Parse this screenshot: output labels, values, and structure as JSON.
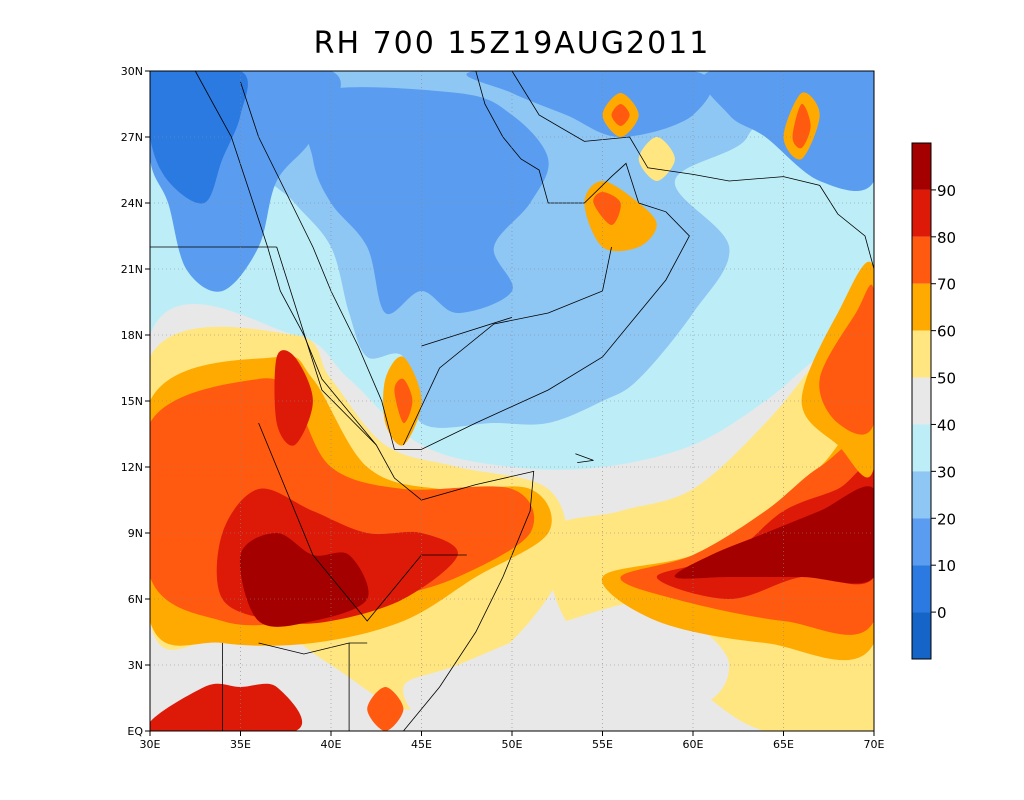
{
  "title": "RH 700 15Z19AUG2011",
  "map": {
    "lon_range": [
      30,
      70
    ],
    "lat_range": [
      0,
      30
    ],
    "x_ticks": [
      {
        "value": 30,
        "label": "30E"
      },
      {
        "value": 35,
        "label": "35E"
      },
      {
        "value": 40,
        "label": "40E"
      },
      {
        "value": 45,
        "label": "45E"
      },
      {
        "value": 50,
        "label": "50E"
      },
      {
        "value": 55,
        "label": "55E"
      },
      {
        "value": 60,
        "label": "60E"
      },
      {
        "value": 65,
        "label": "65E"
      },
      {
        "value": 70,
        "label": "70E"
      }
    ],
    "y_ticks": [
      {
        "value": 0,
        "label": "EQ"
      },
      {
        "value": 3,
        "label": "3N"
      },
      {
        "value": 6,
        "label": "6N"
      },
      {
        "value": 9,
        "label": "9N"
      },
      {
        "value": 12,
        "label": "12N"
      },
      {
        "value": 15,
        "label": "15N"
      },
      {
        "value": 18,
        "label": "18N"
      },
      {
        "value": 21,
        "label": "21N"
      },
      {
        "value": 24,
        "label": "24N"
      },
      {
        "value": 27,
        "label": "27N"
      },
      {
        "value": 30,
        "label": "30N"
      }
    ],
    "grid": "dotted"
  },
  "colorbar": {
    "levels": [
      "0",
      "10",
      "20",
      "30",
      "40",
      "50",
      "60",
      "70",
      "80",
      "90"
    ],
    "colors": [
      "#1565c8",
      "#2a7ae2",
      "#5a9df0",
      "#8ec6f4",
      "#bdeef7",
      "#e8e8e8",
      "#ffe680",
      "#ffaa00",
      "#ff5a10",
      "#dd1a08",
      "#a50000"
    ]
  },
  "regions": [
    {
      "name": "base",
      "value": "light-blue",
      "color": "#bdeef7",
      "lonlat": [
        [
          30,
          30
        ],
        [
          70,
          30
        ],
        [
          70,
          0
        ],
        [
          30,
          0
        ]
      ]
    },
    {
      "name": "arabia-mid-blue",
      "color": "#8ec6f4",
      "lonlat": [
        [
          38,
          30
        ],
        [
          62,
          30
        ],
        [
          63,
          27
        ],
        [
          59,
          25
        ],
        [
          62,
          22
        ],
        [
          60,
          19
        ],
        [
          57,
          16
        ],
        [
          55,
          15
        ],
        [
          52,
          14
        ],
        [
          49,
          14
        ],
        [
          45,
          14
        ],
        [
          44,
          17
        ],
        [
          42,
          17
        ],
        [
          41,
          19
        ],
        [
          40,
          22
        ],
        [
          38,
          24
        ],
        [
          36,
          26
        ]
      ]
    },
    {
      "name": "arabia-deep-blue",
      "color": "#5a9df0",
      "lonlat": [
        [
          39,
          29
        ],
        [
          47,
          29
        ],
        [
          50,
          28
        ],
        [
          52,
          26
        ],
        [
          51,
          24
        ],
        [
          49,
          22
        ],
        [
          50,
          20
        ],
        [
          47,
          19
        ],
        [
          45,
          20
        ],
        [
          43,
          19
        ],
        [
          42,
          22
        ],
        [
          40,
          24
        ],
        [
          39,
          26
        ]
      ]
    },
    {
      "name": "nw-blue",
      "color": "#5a9df0",
      "lonlat": [
        [
          30,
          30
        ],
        [
          40,
          30
        ],
        [
          39,
          27
        ],
        [
          37,
          25
        ],
        [
          36,
          22
        ],
        [
          34,
          20
        ],
        [
          32,
          21
        ],
        [
          31,
          24
        ],
        [
          30,
          26
        ]
      ]
    },
    {
      "name": "nw-deep",
      "color": "#2a7ae2",
      "lonlat": [
        [
          30,
          30
        ],
        [
          35,
          30
        ],
        [
          35,
          28
        ],
        [
          34,
          26
        ],
        [
          33,
          24
        ],
        [
          31,
          25
        ],
        [
          30,
          27
        ]
      ]
    },
    {
      "name": "gulf-blue",
      "color": "#5a9df0",
      "lonlat": [
        [
          48,
          30
        ],
        [
          60,
          30
        ],
        [
          60,
          28
        ],
        [
          56,
          27
        ],
        [
          53,
          28
        ],
        [
          50,
          29
        ]
      ]
    },
    {
      "name": "ne-blue",
      "color": "#5a9df0",
      "lonlat": [
        [
          61,
          30
        ],
        [
          70,
          30
        ],
        [
          70,
          25
        ],
        [
          67,
          25
        ],
        [
          64,
          27
        ],
        [
          62,
          28
        ]
      ]
    },
    {
      "name": "south-gray",
      "color": "#e8e8e8",
      "lonlat": [
        [
          30,
          18
        ],
        [
          38,
          18
        ],
        [
          41,
          16
        ],
        [
          45,
          13
        ],
        [
          50,
          12
        ],
        [
          55,
          12
        ],
        [
          60,
          13
        ],
        [
          64,
          15
        ],
        [
          67,
          17
        ],
        [
          70,
          18
        ],
        [
          70,
          0
        ],
        [
          30,
          0
        ]
      ]
    },
    {
      "name": "ne-africa-yellow",
      "color": "#ffe680",
      "lonlat": [
        [
          30,
          17
        ],
        [
          38,
          18
        ],
        [
          40,
          16
        ],
        [
          43,
          13
        ],
        [
          47,
          12
        ],
        [
          52,
          11
        ],
        [
          53,
          8
        ],
        [
          51,
          5
        ],
        [
          47,
          2
        ],
        [
          44,
          1
        ],
        [
          40,
          3
        ],
        [
          36,
          5
        ],
        [
          33,
          4
        ],
        [
          30,
          5
        ]
      ]
    },
    {
      "name": "arabian-sea-yellow",
      "color": "#ffe680",
      "lonlat": [
        [
          52,
          9
        ],
        [
          56,
          10
        ],
        [
          60,
          11
        ],
        [
          64,
          14
        ],
        [
          67,
          17
        ],
        [
          70,
          20
        ],
        [
          70,
          0
        ],
        [
          64,
          0
        ],
        [
          60,
          2
        ],
        [
          56,
          4
        ],
        [
          53,
          5
        ]
      ]
    },
    {
      "name": "somali-gray",
      "color": "#e8e8e8",
      "lonlat": [
        [
          47,
          3
        ],
        [
          53,
          5
        ],
        [
          58,
          6
        ],
        [
          60,
          5
        ],
        [
          62,
          3
        ],
        [
          60,
          1
        ],
        [
          52,
          0
        ],
        [
          46,
          0
        ],
        [
          44,
          2
        ]
      ]
    },
    {
      "name": "africa-orange",
      "color": "#ffaa00",
      "lonlat": [
        [
          30,
          15
        ],
        [
          37,
          17
        ],
        [
          39,
          16
        ],
        [
          42,
          12
        ],
        [
          46,
          11
        ],
        [
          51,
          11
        ],
        [
          52,
          9
        ],
        [
          48,
          7
        ],
        [
          44,
          5
        ],
        [
          39,
          4
        ],
        [
          34,
          4
        ],
        [
          30,
          5
        ]
      ]
    },
    {
      "name": "africa-red",
      "color": "#ff5a10",
      "lonlat": [
        [
          30,
          14
        ],
        [
          36,
          16
        ],
        [
          38,
          15
        ],
        [
          40,
          12
        ],
        [
          44,
          11
        ],
        [
          50,
          11
        ],
        [
          51,
          9
        ],
        [
          47,
          7
        ],
        [
          43,
          6
        ],
        [
          38,
          5
        ],
        [
          34,
          5
        ],
        [
          30,
          7
        ]
      ]
    },
    {
      "name": "africa-darkred",
      "color": "#dd1a08",
      "lonlat": [
        [
          34,
          9
        ],
        [
          36,
          11
        ],
        [
          39,
          10
        ],
        [
          42,
          9
        ],
        [
          45,
          9
        ],
        [
          47,
          8
        ],
        [
          44,
          6
        ],
        [
          40,
          5
        ],
        [
          37,
          5
        ],
        [
          34,
          6
        ]
      ]
    },
    {
      "name": "africa-core",
      "color": "#a50000",
      "lonlat": [
        [
          35,
          8
        ],
        [
          37,
          9
        ],
        [
          39,
          8
        ],
        [
          41,
          8
        ],
        [
          42,
          6
        ],
        [
          39,
          5
        ],
        [
          36,
          5
        ]
      ]
    },
    {
      "name": "ethiopia-highland",
      "color": "#dd1a08",
      "lonlat": [
        [
          37,
          17
        ],
        [
          38,
          17
        ],
        [
          39,
          15
        ],
        [
          38,
          13
        ],
        [
          37,
          14
        ]
      ]
    },
    {
      "name": "sea-orange",
      "color": "#ffaa00",
      "lonlat": [
        [
          55,
          7
        ],
        [
          60,
          8
        ],
        [
          64,
          10
        ],
        [
          67,
          12
        ],
        [
          70,
          14
        ],
        [
          70,
          4
        ],
        [
          64,
          4
        ],
        [
          58,
          5
        ]
      ]
    },
    {
      "name": "sea-red",
      "color": "#ff5a10",
      "lonlat": [
        [
          56,
          7
        ],
        [
          60,
          8
        ],
        [
          64,
          10
        ],
        [
          67,
          12
        ],
        [
          70,
          13
        ],
        [
          70,
          5
        ],
        [
          65,
          5
        ],
        [
          59,
          6
        ]
      ]
    },
    {
      "name": "sea-darkred",
      "color": "#dd1a08",
      "lonlat": [
        [
          58,
          7
        ],
        [
          62,
          8
        ],
        [
          65,
          10
        ],
        [
          68,
          11
        ],
        [
          70,
          12
        ],
        [
          70,
          7
        ],
        [
          66,
          7
        ],
        [
          62,
          6
        ]
      ]
    },
    {
      "name": "sea-core",
      "color": "#a50000",
      "lonlat": [
        [
          59,
          7
        ],
        [
          61,
          8
        ],
        [
          64,
          9
        ],
        [
          67,
          10
        ],
        [
          70,
          11
        ],
        [
          70,
          7
        ],
        [
          66,
          7
        ],
        [
          62,
          7
        ]
      ]
    },
    {
      "name": "east-arc-orange",
      "color": "#ffaa00",
      "lonlat": [
        [
          66,
          15
        ],
        [
          68,
          19
        ],
        [
          70,
          21
        ],
        [
          70,
          12
        ],
        [
          68,
          13
        ]
      ]
    },
    {
      "name": "east-arc-red",
      "color": "#ff5a10",
      "lonlat": [
        [
          67,
          16
        ],
        [
          69,
          19
        ],
        [
          70,
          20
        ],
        [
          70,
          14
        ],
        [
          68,
          14
        ]
      ]
    },
    {
      "name": "yemen-orange",
      "color": "#ffaa00",
      "lonlat": [
        [
          43,
          16
        ],
        [
          44,
          17
        ],
        [
          45,
          15
        ],
        [
          44,
          13
        ],
        [
          43,
          14
        ]
      ]
    },
    {
      "name": "yemen-red",
      "color": "#ff5a10",
      "lonlat": [
        [
          43.5,
          15.5
        ],
        [
          44,
          16
        ],
        [
          44.5,
          15
        ],
        [
          44,
          14
        ]
      ]
    },
    {
      "name": "oman-orange",
      "color": "#ffaa00",
      "lonlat": [
        [
          54,
          24
        ],
        [
          55,
          25
        ],
        [
          57,
          24
        ],
        [
          58,
          23
        ],
        [
          57,
          22
        ],
        [
          55,
          22
        ]
      ]
    },
    {
      "name": "oman-red",
      "color": "#ff5a10",
      "lonlat": [
        [
          54.5,
          24
        ],
        [
          55,
          24.5
        ],
        [
          56,
          24
        ],
        [
          55.5,
          23
        ]
      ]
    },
    {
      "name": "iran-orange",
      "color": "#ffaa00",
      "lonlat": [
        [
          55,
          28
        ],
        [
          56,
          29
        ],
        [
          57,
          28
        ],
        [
          56,
          27
        ]
      ]
    },
    {
      "name": "iran-red",
      "color": "#ff5a10",
      "lonlat": [
        [
          55.5,
          28
        ],
        [
          56,
          28.5
        ],
        [
          56.5,
          28
        ],
        [
          56,
          27.5
        ]
      ]
    },
    {
      "name": "iran-east-orange",
      "color": "#ffaa00",
      "lonlat": [
        [
          65,
          27
        ],
        [
          66,
          29
        ],
        [
          67,
          28
        ],
        [
          66,
          26
        ]
      ]
    },
    {
      "name": "iran-east-red",
      "color": "#ff5a10",
      "lonlat": [
        [
          65.5,
          27
        ],
        [
          66,
          28.5
        ],
        [
          66.5,
          27.5
        ],
        [
          66,
          26.5
        ]
      ]
    },
    {
      "name": "gulf-yellow",
      "color": "#ffe680",
      "lonlat": [
        [
          57,
          26
        ],
        [
          58,
          27
        ],
        [
          59,
          26
        ],
        [
          58,
          25
        ]
      ]
    },
    {
      "name": "kenya-darkred",
      "color": "#dd1a08",
      "lonlat": [
        [
          30,
          0
        ],
        [
          33,
          2
        ],
        [
          35,
          2
        ],
        [
          37,
          2
        ],
        [
          38,
          0
        ]
      ]
    },
    {
      "name": "kenya-red",
      "color": "#ff5a10",
      "lonlat": [
        [
          42,
          1
        ],
        [
          43,
          2
        ],
        [
          44,
          1
        ],
        [
          43,
          0
        ]
      ]
    }
  ]
}
